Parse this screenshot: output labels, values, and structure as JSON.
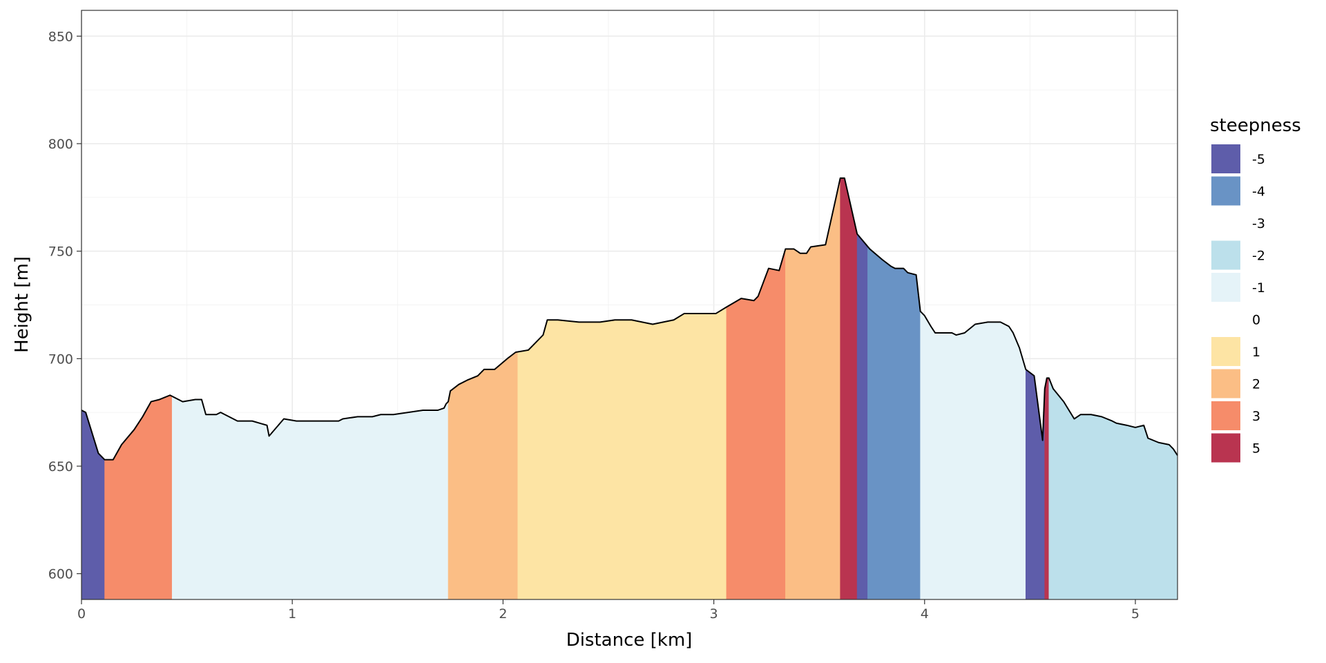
{
  "chart_data": {
    "type": "area",
    "title": "",
    "xlabel": "Distance [km]",
    "ylabel": "Height [m]",
    "xlim": [
      0,
      5.2
    ],
    "ylim": [
      588,
      862
    ],
    "x_ticks": [
      "0",
      "1",
      "2",
      "3",
      "4",
      "5"
    ],
    "x_tick_values": [
      0,
      1,
      2,
      3,
      4,
      5
    ],
    "y_ticks": [
      "600",
      "650",
      "700",
      "750",
      "800",
      "850"
    ],
    "y_tick_values": [
      600,
      650,
      700,
      750,
      800,
      850
    ],
    "grid": true,
    "legend": {
      "title": "steepness",
      "placement": "right",
      "items": [
        {
          "label": "-5",
          "color": "#5E5DAA"
        },
        {
          "label": "-4",
          "color": "#6993C5"
        },
        {
          "label": "-3",
          "color": "#ffffff"
        },
        {
          "label": "-2",
          "color": "#BCE0EB"
        },
        {
          "label": "-1",
          "color": "#E5F3F8"
        },
        {
          "label": "0",
          "color": "#ffffff"
        },
        {
          "label": "1",
          "color": "#FDE4A4"
        },
        {
          "label": "2",
          "color": "#FBBE85"
        },
        {
          "label": "3",
          "color": "#F68C6A"
        },
        {
          "label": "5",
          "color": "#B93450"
        }
      ]
    },
    "profile": [
      [
        0,
        676
      ],
      [
        0.02,
        675
      ],
      [
        0.08,
        656
      ],
      [
        0.11,
        653
      ],
      [
        0.15,
        653
      ],
      [
        0.19,
        660
      ],
      [
        0.25,
        667
      ],
      [
        0.29,
        673
      ],
      [
        0.33,
        680
      ],
      [
        0.37,
        681
      ],
      [
        0.42,
        683
      ],
      [
        0.48,
        680
      ],
      [
        0.54,
        681
      ],
      [
        0.57,
        681
      ],
      [
        0.59,
        674
      ],
      [
        0.64,
        674
      ],
      [
        0.66,
        675
      ],
      [
        0.68,
        674
      ],
      [
        0.74,
        671
      ],
      [
        0.81,
        671
      ],
      [
        0.88,
        669
      ],
      [
        0.89,
        664
      ],
      [
        0.96,
        672
      ],
      [
        1.02,
        671
      ],
      [
        1.04,
        671
      ],
      [
        1.1,
        671
      ],
      [
        1.22,
        671
      ],
      [
        1.24,
        672
      ],
      [
        1.31,
        673
      ],
      [
        1.38,
        673
      ],
      [
        1.42,
        674
      ],
      [
        1.48,
        674
      ],
      [
        1.55,
        675
      ],
      [
        1.62,
        676
      ],
      [
        1.69,
        676
      ],
      [
        1.72,
        677
      ],
      [
        1.73,
        679
      ],
      [
        1.74,
        680
      ],
      [
        1.75,
        685
      ],
      [
        1.79,
        688
      ],
      [
        1.83,
        690
      ],
      [
        1.88,
        692
      ],
      [
        1.91,
        695
      ],
      [
        1.96,
        695
      ],
      [
        2.02,
        700
      ],
      [
        2.06,
        703
      ],
      [
        2.12,
        704
      ],
      [
        2.14,
        706
      ],
      [
        2.19,
        711
      ],
      [
        2.21,
        718
      ],
      [
        2.26,
        718
      ],
      [
        2.36,
        717
      ],
      [
        2.46,
        717
      ],
      [
        2.53,
        718
      ],
      [
        2.61,
        718
      ],
      [
        2.66,
        717
      ],
      [
        2.71,
        716
      ],
      [
        2.76,
        717
      ],
      [
        2.81,
        718
      ],
      [
        2.86,
        721
      ],
      [
        2.96,
        721
      ],
      [
        3.01,
        721
      ],
      [
        3.06,
        724
      ],
      [
        3.13,
        728
      ],
      [
        3.19,
        727
      ],
      [
        3.21,
        729
      ],
      [
        3.26,
        742
      ],
      [
        3.31,
        741
      ],
      [
        3.34,
        751
      ],
      [
        3.38,
        751
      ],
      [
        3.41,
        749
      ],
      [
        3.44,
        749
      ],
      [
        3.46,
        752
      ],
      [
        3.53,
        753
      ],
      [
        3.58,
        775
      ],
      [
        3.6,
        784
      ],
      [
        3.62,
        784
      ],
      [
        3.68,
        758
      ],
      [
        3.74,
        751
      ],
      [
        3.8,
        746
      ],
      [
        3.84,
        743
      ],
      [
        3.86,
        742
      ],
      [
        3.9,
        742
      ],
      [
        3.92,
        740
      ],
      [
        3.96,
        739
      ],
      [
        3.98,
        722
      ],
      [
        4.0,
        720
      ],
      [
        4.03,
        715
      ],
      [
        4.05,
        712
      ],
      [
        4.13,
        712
      ],
      [
        4.15,
        711
      ],
      [
        4.19,
        712
      ],
      [
        4.24,
        716
      ],
      [
        4.3,
        717
      ],
      [
        4.36,
        717
      ],
      [
        4.4,
        715
      ],
      [
        4.42,
        712
      ],
      [
        4.45,
        705
      ],
      [
        4.48,
        695
      ],
      [
        4.52,
        692
      ],
      [
        4.56,
        662
      ],
      [
        4.57,
        686
      ],
      [
        4.58,
        691
      ],
      [
        4.59,
        691
      ],
      [
        4.61,
        686
      ],
      [
        4.66,
        680
      ],
      [
        4.71,
        672
      ],
      [
        4.74,
        674
      ],
      [
        4.79,
        674
      ],
      [
        4.84,
        673
      ],
      [
        4.89,
        671
      ],
      [
        4.91,
        670
      ],
      [
        4.96,
        669
      ],
      [
        5.0,
        668
      ],
      [
        5.04,
        669
      ],
      [
        5.06,
        663
      ],
      [
        5.11,
        661
      ],
      [
        5.16,
        660
      ],
      [
        5.18,
        658
      ],
      [
        5.2,
        655
      ]
    ],
    "segments": [
      {
        "start": 0,
        "end": 0.11,
        "steepness": "-5"
      },
      {
        "start": 0.11,
        "end": 0.43,
        "steepness": "3"
      },
      {
        "start": 0.43,
        "end": 1.74,
        "steepness": "-1"
      },
      {
        "start": 1.74,
        "end": 2.07,
        "steepness": "2"
      },
      {
        "start": 2.07,
        "end": 3.06,
        "steepness": "1"
      },
      {
        "start": 3.06,
        "end": 3.34,
        "steepness": "3"
      },
      {
        "start": 3.34,
        "end": 3.6,
        "steepness": "2"
      },
      {
        "start": 3.6,
        "end": 3.68,
        "steepness": "5"
      },
      {
        "start": 3.68,
        "end": 3.73,
        "steepness": "-5"
      },
      {
        "start": 3.73,
        "end": 3.98,
        "steepness": "-4"
      },
      {
        "start": 3.98,
        "end": 4.48,
        "steepness": "-1"
      },
      {
        "start": 4.48,
        "end": 4.57,
        "steepness": "-5"
      },
      {
        "start": 4.57,
        "end": 4.59,
        "steepness": "5"
      },
      {
        "start": 4.59,
        "end": 5.2,
        "steepness": "-2"
      }
    ]
  }
}
